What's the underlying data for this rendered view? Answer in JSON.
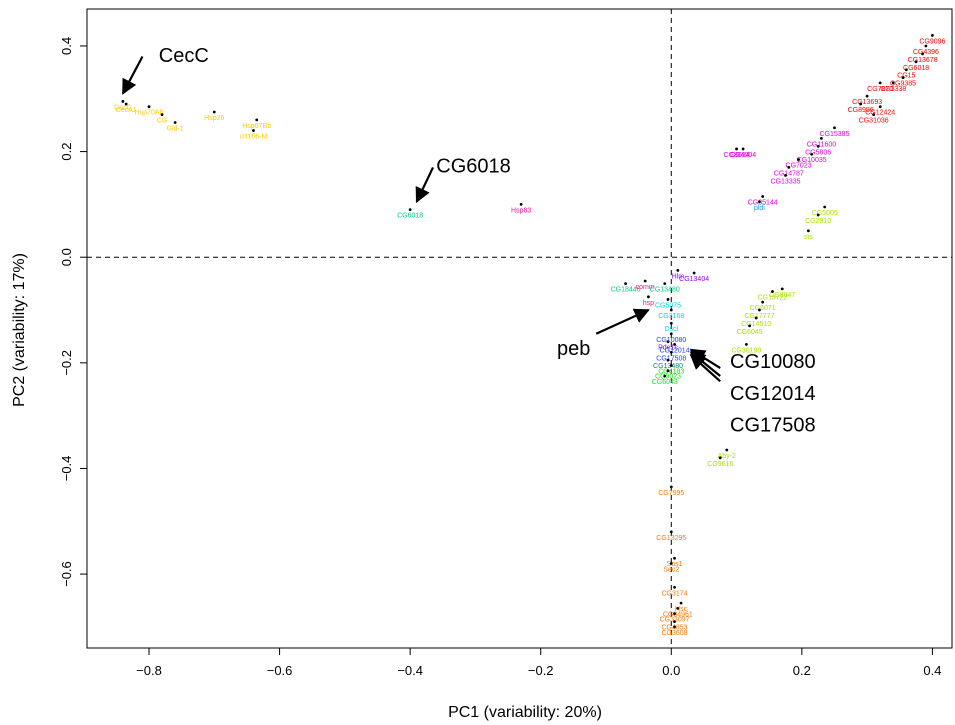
{
  "chart_data": {
    "type": "scatter",
    "xlabel": "PC1 (variability: 20%)",
    "ylabel": "PC2 (variability: 17%)",
    "xlim": [
      -0.895,
      0.43
    ],
    "ylim": [
      -0.74,
      0.47
    ],
    "x_ticks": [
      {
        "v": -0.8,
        "label": "−0.8"
      },
      {
        "v": -0.6,
        "label": "−0.6"
      },
      {
        "v": -0.4,
        "label": "−0.4"
      },
      {
        "v": -0.2,
        "label": "−0.2"
      },
      {
        "v": 0.0,
        "label": "0.0"
      },
      {
        "v": 0.2,
        "label": "0.2"
      },
      {
        "v": 0.4,
        "label": "0.4"
      }
    ],
    "y_ticks": [
      {
        "v": -0.6,
        "label": "−0.6"
      },
      {
        "v": -0.4,
        "label": "−0.4"
      },
      {
        "v": -0.2,
        "label": "−0.2"
      },
      {
        "v": 0.0,
        "label": "0.0"
      },
      {
        "v": 0.2,
        "label": "0.2"
      },
      {
        "v": 0.4,
        "label": "0.4"
      }
    ],
    "reference_lines": {
      "x": 0.0,
      "y": 0.0
    },
    "grid": false,
    "clusters": [
      {
        "color": "#ff0000",
        "points": [
          {
            "x": 0.4,
            "y": 0.42,
            "label": "CG9096"
          },
          {
            "x": 0.39,
            "y": 0.4,
            "label": "CG4396"
          },
          {
            "x": 0.385,
            "y": 0.385,
            "label": "CG13678"
          },
          {
            "x": 0.375,
            "y": 0.37,
            "label": "CG6018"
          },
          {
            "x": 0.36,
            "y": 0.355,
            "label": "CG15"
          },
          {
            "x": 0.355,
            "y": 0.34,
            "label": "CG9385"
          },
          {
            "x": 0.34,
            "y": 0.33,
            "label": "CG3338"
          },
          {
            "x": 0.32,
            "y": 0.33,
            "label": "CG7870"
          },
          {
            "x": 0.3,
            "y": 0.305,
            "label": "CG13693"
          },
          {
            "x": 0.29,
            "y": 0.29,
            "label": "CG8996"
          },
          {
            "x": 0.32,
            "y": 0.285,
            "label": "CG12424"
          },
          {
            "x": 0.31,
            "y": 0.27,
            "label": "CG31036"
          }
        ]
      },
      {
        "color": "#e000e0",
        "points": [
          {
            "x": 0.25,
            "y": 0.245,
            "label": "CG15385"
          },
          {
            "x": 0.23,
            "y": 0.225,
            "label": "CG11600"
          },
          {
            "x": 0.225,
            "y": 0.21,
            "label": "CG5806"
          },
          {
            "x": 0.1,
            "y": 0.205,
            "label": "CG8694"
          },
          {
            "x": 0.11,
            "y": 0.205,
            "label": "CG4004"
          },
          {
            "x": 0.215,
            "y": 0.195,
            "label": "CG10035"
          },
          {
            "x": 0.195,
            "y": 0.185,
            "label": "CG7023"
          },
          {
            "x": 0.18,
            "y": 0.17,
            "label": "CG14787"
          },
          {
            "x": 0.175,
            "y": 0.155,
            "label": "CG13335"
          },
          {
            "x": 0.14,
            "y": 0.115,
            "label": "CG35144"
          }
        ]
      },
      {
        "color": "#00aaff",
        "points": [
          {
            "x": 0.135,
            "y": 0.105,
            "label": "pldi"
          }
        ]
      },
      {
        "color": "#a8e000",
        "points": [
          {
            "x": 0.235,
            "y": 0.095,
            "label": "CG5005"
          },
          {
            "x": 0.225,
            "y": 0.08,
            "label": "CG2910"
          },
          {
            "x": 0.21,
            "y": 0.05,
            "label": "sts"
          },
          {
            "x": 0.17,
            "y": -0.06,
            "label": "CG8947"
          },
          {
            "x": 0.155,
            "y": -0.065,
            "label": "CG13722"
          },
          {
            "x": 0.14,
            "y": -0.085,
            "label": "CG6071"
          },
          {
            "x": 0.135,
            "y": -0.1,
            "label": "CG17777"
          },
          {
            "x": 0.13,
            "y": -0.115,
            "label": "CG14510"
          },
          {
            "x": 0.12,
            "y": -0.13,
            "label": "CG6045"
          },
          {
            "x": 0.115,
            "y": -0.165,
            "label": "CG30199"
          },
          {
            "x": 0.085,
            "y": -0.365,
            "label": "Aby-2"
          },
          {
            "x": 0.075,
            "y": -0.38,
            "label": "CG9616"
          }
        ]
      },
      {
        "color": "#ffcc00",
        "points": [
          {
            "x": -0.84,
            "y": 0.295,
            "label": "CecC"
          },
          {
            "x": -0.835,
            "y": 0.29,
            "label": "CecA1"
          },
          {
            "x": -0.8,
            "y": 0.285,
            "label": "Hsp70Ab"
          },
          {
            "x": -0.78,
            "y": 0.27,
            "label": "CG"
          },
          {
            "x": -0.76,
            "y": 0.255,
            "label": "Gld-1"
          },
          {
            "x": -0.7,
            "y": 0.275,
            "label": "Hsp26"
          },
          {
            "x": -0.635,
            "y": 0.26,
            "label": "Hsp67Bb"
          },
          {
            "x": -0.64,
            "y": 0.24,
            "label": "crt186-M"
          }
        ]
      },
      {
        "color": "#00cc88",
        "points": [
          {
            "x": -0.4,
            "y": 0.09,
            "label": "CG6018"
          },
          {
            "x": -0.07,
            "y": -0.05,
            "label": "CG18446"
          },
          {
            "x": -0.01,
            "y": -0.05,
            "label": "CG13480"
          }
        ]
      },
      {
        "color": "#ff1493",
        "points": [
          {
            "x": -0.23,
            "y": 0.1,
            "label": "Hsp83"
          },
          {
            "x": -0.04,
            "y": -0.045,
            "label": "comm"
          },
          {
            "x": -0.035,
            "y": -0.075,
            "label": "hsp"
          }
        ]
      },
      {
        "color": "#9900ff",
        "points": [
          {
            "x": 0.01,
            "y": -0.025,
            "label": "Hlm"
          },
          {
            "x": 0.035,
            "y": -0.03,
            "label": "CG13404"
          },
          {
            "x": -0.005,
            "y": -0.16,
            "label": "Pde1c"
          }
        ]
      },
      {
        "color": "#00d8e8",
        "points": [
          {
            "x": -0.005,
            "y": -0.08,
            "label": "CG5075"
          },
          {
            "x": 0.0,
            "y": -0.1,
            "label": "CG3168"
          },
          {
            "x": 0.0,
            "y": -0.125,
            "label": "Dscl"
          }
        ]
      },
      {
        "color": "#1e3cff",
        "points": [
          {
            "x": 0.0,
            "y": -0.145,
            "label": "CG10080"
          },
          {
            "x": 0.005,
            "y": -0.165,
            "label": "CG12014"
          },
          {
            "x": 0.0,
            "y": -0.18,
            "label": "CG17508"
          }
        ]
      },
      {
        "color": "#008878",
        "points": [
          {
            "x": -0.005,
            "y": -0.195,
            "label": "CG13480"
          }
        ]
      },
      {
        "color": "#22dd22",
        "points": [
          {
            "x": 0.0,
            "y": -0.205,
            "label": "CG4183"
          },
          {
            "x": -0.005,
            "y": -0.215,
            "label": "CG9023"
          },
          {
            "x": -0.01,
            "y": -0.225,
            "label": "CG6043"
          }
        ]
      },
      {
        "color": "#ff7700",
        "points": [
          {
            "x": 0.0,
            "y": -0.435,
            "label": "CG7995"
          },
          {
            "x": 0.0,
            "y": -0.52,
            "label": "CG13295"
          },
          {
            "x": 0.005,
            "y": -0.57,
            "label": "Sos1"
          },
          {
            "x": 0.0,
            "y": -0.58,
            "label": "Sec2"
          },
          {
            "x": 0.005,
            "y": -0.625,
            "label": "CG3174"
          },
          {
            "x": 0.015,
            "y": -0.655,
            "label": "Hsc"
          },
          {
            "x": 0.01,
            "y": -0.665,
            "label": "CG34961"
          },
          {
            "x": 0.005,
            "y": -0.675,
            "label": "CG33097"
          },
          {
            "x": 0.005,
            "y": -0.69,
            "label": "CG4853"
          },
          {
            "x": 0.005,
            "y": -0.7,
            "label": "CG3608"
          }
        ]
      }
    ],
    "annotations": [
      {
        "text": "CecC",
        "text_x": -0.785,
        "text_y": 0.37,
        "arrows": [
          {
            "from": [
              -0.81,
              0.38
            ],
            "to": [
              -0.84,
              0.31
            ]
          }
        ]
      },
      {
        "text": "CG6018",
        "text_x": -0.36,
        "text_y": 0.16,
        "arrows": [
          {
            "from": [
              -0.365,
              0.17
            ],
            "to": [
              -0.39,
              0.105
            ]
          }
        ]
      },
      {
        "text": "peb",
        "text_x": -0.175,
        "text_y": -0.185,
        "arrows": [
          {
            "from": [
              -0.115,
              -0.145
            ],
            "to": [
              -0.035,
              -0.1
            ]
          }
        ]
      },
      {
        "text": "CG10080",
        "text_x": 0.09,
        "text_y": -0.21,
        "arrows": [
          {
            "from": [
              0.075,
              -0.21
            ],
            "to": [
              0.03,
              -0.175
            ]
          },
          {
            "from": [
              0.075,
              -0.225
            ],
            "to": [
              0.03,
              -0.18
            ]
          },
          {
            "from": [
              0.075,
              -0.235
            ],
            "to": [
              0.03,
              -0.185
            ]
          }
        ]
      },
      {
        "text": "CG12014",
        "text_x": 0.09,
        "text_y": -0.27,
        "arrows": []
      },
      {
        "text": "CG17508",
        "text_x": 0.09,
        "text_y": -0.33,
        "arrows": []
      }
    ]
  }
}
